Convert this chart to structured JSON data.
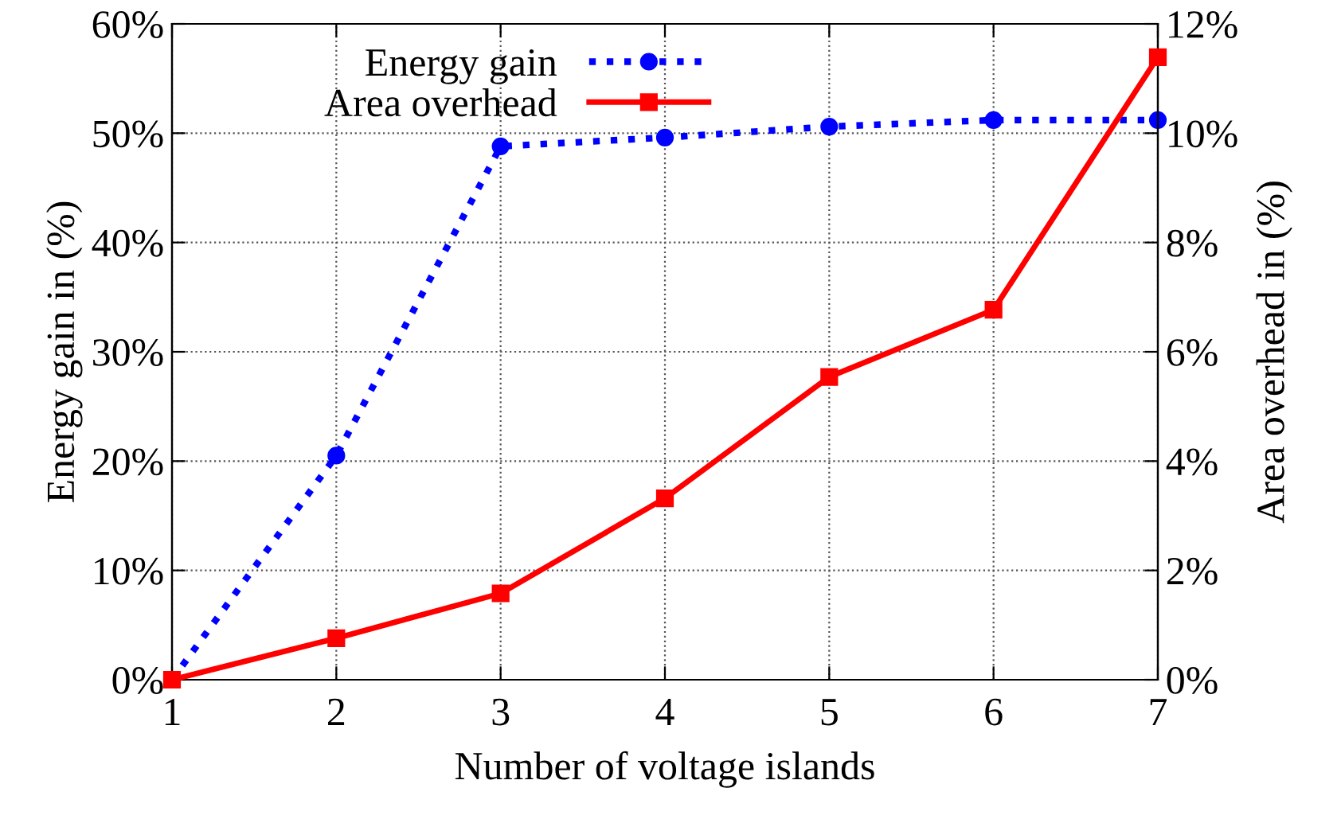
{
  "chart_data": {
    "type": "line",
    "xlabel": "Number of voltage islands",
    "ylabel": "Energy gain in (%)",
    "y2label": "Area overhead in (%)",
    "x": [
      1,
      2,
      3,
      4,
      5,
      6,
      7
    ],
    "series": [
      {
        "name": "Energy gain",
        "color": "#0000ff",
        "values": [
          0,
          20.5,
          48.8,
          49.6,
          50.6,
          51.2,
          51.2
        ],
        "marker": "circle",
        "line_style": "dotted"
      },
      {
        "name": "Area overhead",
        "color": "#ff0000",
        "values": [
          0,
          0.76,
          1.58,
          3.32,
          5.54,
          6.77,
          11.39
        ],
        "marker": "square",
        "line_style": "solid",
        "axis": "y2"
      }
    ],
    "xlim": [
      1,
      7
    ],
    "xticks": [
      1,
      2,
      3,
      4,
      5,
      6,
      7
    ],
    "ylim": [
      0,
      60
    ],
    "yticks": [
      {
        "value": 0,
        "label": "0%"
      },
      {
        "value": 10,
        "label": "10%"
      },
      {
        "value": 20,
        "label": "20%"
      },
      {
        "value": 30,
        "label": "30%"
      },
      {
        "value": 40,
        "label": "40%"
      },
      {
        "value": 50,
        "label": "50%"
      },
      {
        "value": 60,
        "label": "60%"
      }
    ],
    "y2lim": [
      0,
      12
    ],
    "y2ticks": [
      {
        "value": 0,
        "label": "0%"
      },
      {
        "value": 2,
        "label": "2%"
      },
      {
        "value": 4,
        "label": "4%"
      },
      {
        "value": 6,
        "label": "6%"
      },
      {
        "value": 8,
        "label": "8%"
      },
      {
        "value": 10,
        "label": "10%"
      },
      {
        "value": 12,
        "label": "12%"
      }
    ],
    "grid": true,
    "legend": "top left"
  }
}
